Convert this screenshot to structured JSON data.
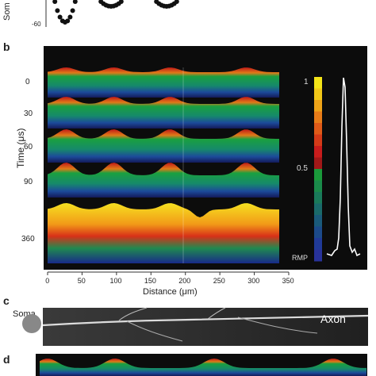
{
  "panels": {
    "a": {
      "y_tick": "-60",
      "y_label_fragment": "Som"
    },
    "b": {
      "label": "b",
      "time_label": "Time (μs)",
      "time_ticks": [
        "0",
        "30",
        "60",
        "90",
        "360"
      ],
      "x_label": "Distance (μm)",
      "x_ticks": [
        "0",
        "50",
        "100",
        "150",
        "200",
        "250",
        "300",
        "350"
      ],
      "colorbar_ticks": [
        "1",
        "0.5",
        "RMP"
      ]
    },
    "c": {
      "label": "c",
      "soma_label": "Soma",
      "axon_label": "Axon"
    },
    "d": {
      "label": "d"
    }
  },
  "colors": {
    "background": "#ffffff",
    "panel_bg": "#0c0c0c",
    "green": "#1a9a3a",
    "red": "#d22a20",
    "yellow": "#f4dc18",
    "blue": "#2a3a98",
    "soma": "#888888"
  },
  "chart_data": {
    "type": "heatmap",
    "x_range": [
      0,
      350
    ],
    "time_rows": [
      0,
      30,
      60,
      90,
      360
    ],
    "colorbar_range": [
      "RMP",
      1
    ]
  }
}
